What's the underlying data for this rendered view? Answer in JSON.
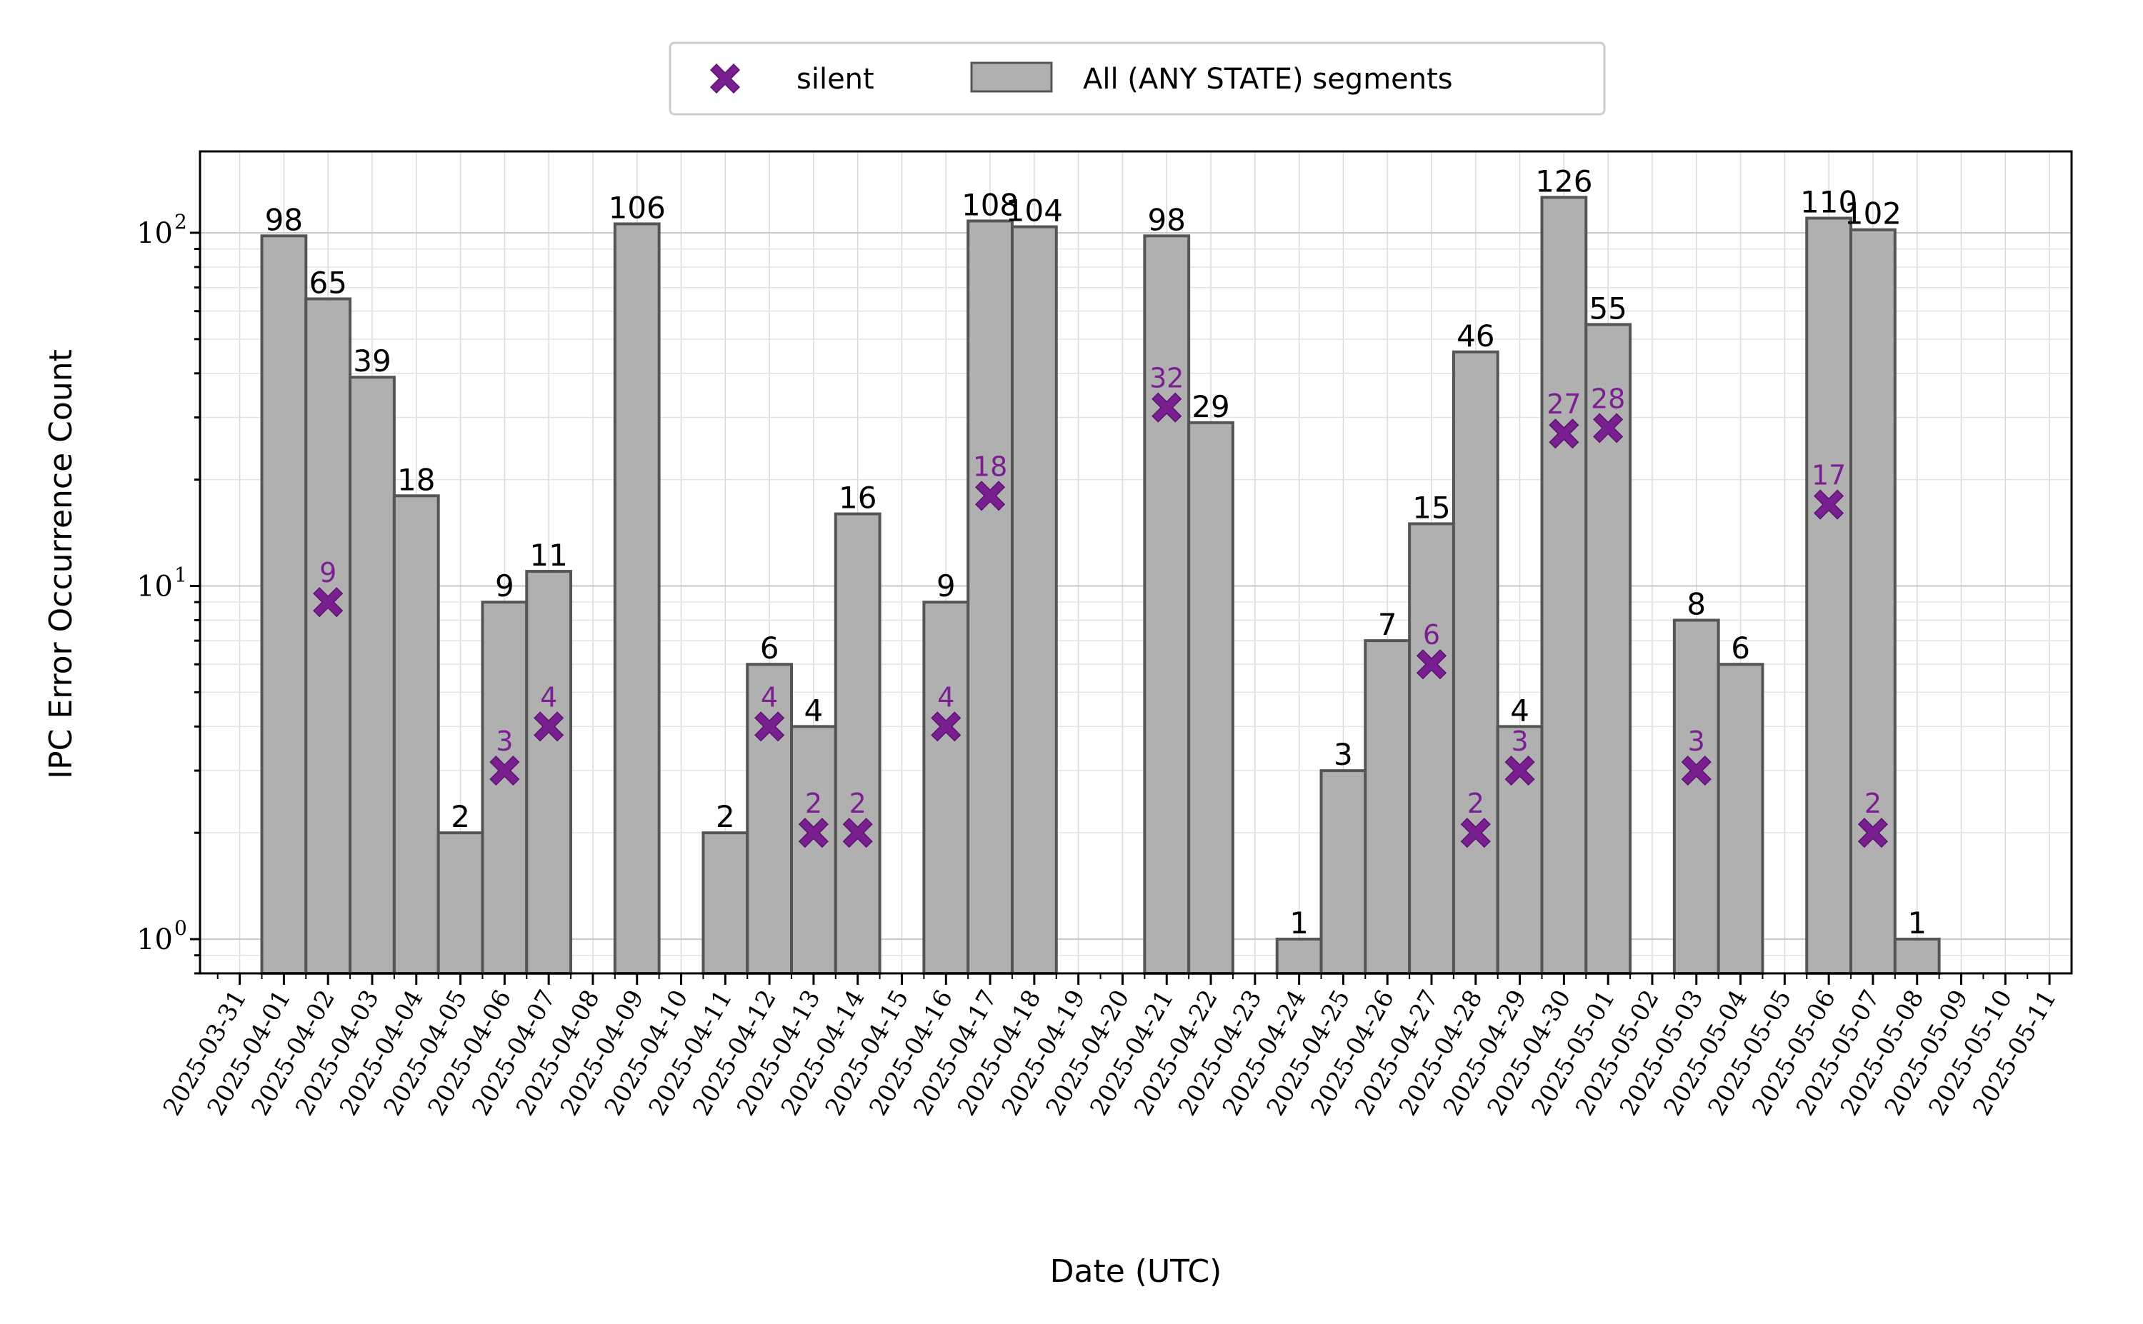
{
  "chart_data": {
    "type": "bar",
    "title": "",
    "xlabel": "Date (UTC)",
    "ylabel": "IPC Error Occurrence Count",
    "yscale": "log",
    "ylim": [
      0.8,
      170
    ],
    "xlim": [
      "2025-03-31",
      "2025-05-11"
    ],
    "grid": true,
    "legend_position": "top-center",
    "y_tick_labels": [
      "10",
      "10",
      "10"
    ],
    "y_tick_exponents": [
      "0",
      "1",
      "2"
    ],
    "x": [
      "2025-03-31",
      "2025-04-01",
      "2025-04-02",
      "2025-04-03",
      "2025-04-04",
      "2025-04-05",
      "2025-04-06",
      "2025-04-07",
      "2025-04-08",
      "2025-04-09",
      "2025-04-10",
      "2025-04-11",
      "2025-04-12",
      "2025-04-13",
      "2025-04-14",
      "2025-04-15",
      "2025-04-16",
      "2025-04-17",
      "2025-04-18",
      "2025-04-19",
      "2025-04-20",
      "2025-04-21",
      "2025-04-22",
      "2025-04-23",
      "2025-04-24",
      "2025-04-25",
      "2025-04-26",
      "2025-04-27",
      "2025-04-28",
      "2025-04-29",
      "2025-04-30",
      "2025-05-01",
      "2025-05-02",
      "2025-05-03",
      "2025-05-04",
      "2025-05-05",
      "2025-05-06",
      "2025-05-07",
      "2025-05-08",
      "2025-05-09",
      "2025-05-10",
      "2025-05-11"
    ],
    "series": [
      {
        "name": "All (ANY STATE) segments",
        "kind": "bar",
        "color": "#b0b0b0",
        "edge_color": "#555555",
        "values": [
          null,
          98,
          65,
          39,
          18,
          2,
          9,
          11,
          null,
          106,
          null,
          2,
          6,
          4,
          16,
          null,
          9,
          108,
          104,
          null,
          null,
          98,
          29,
          null,
          1,
          3,
          7,
          15,
          46,
          4,
          126,
          55,
          null,
          8,
          6,
          null,
          110,
          102,
          1,
          null,
          null,
          null
        ]
      },
      {
        "name": "silent",
        "kind": "marker",
        "color": "#7a1f8f",
        "values": [
          null,
          null,
          9,
          null,
          null,
          null,
          3,
          4,
          null,
          null,
          null,
          null,
          4,
          2,
          2,
          null,
          4,
          18,
          null,
          null,
          null,
          32,
          null,
          null,
          null,
          null,
          null,
          6,
          2,
          3,
          27,
          28,
          null,
          3,
          null,
          null,
          17,
          2,
          null,
          null,
          null,
          null
        ]
      }
    ]
  },
  "legend": {
    "marker_label": "silent",
    "bar_label": "All (ANY STATE) segments"
  },
  "colors": {
    "bar_fill": "#b0b0b0",
    "bar_edge": "#555555",
    "marker": "#7a1f8f",
    "grid": "#d0d0d0"
  }
}
